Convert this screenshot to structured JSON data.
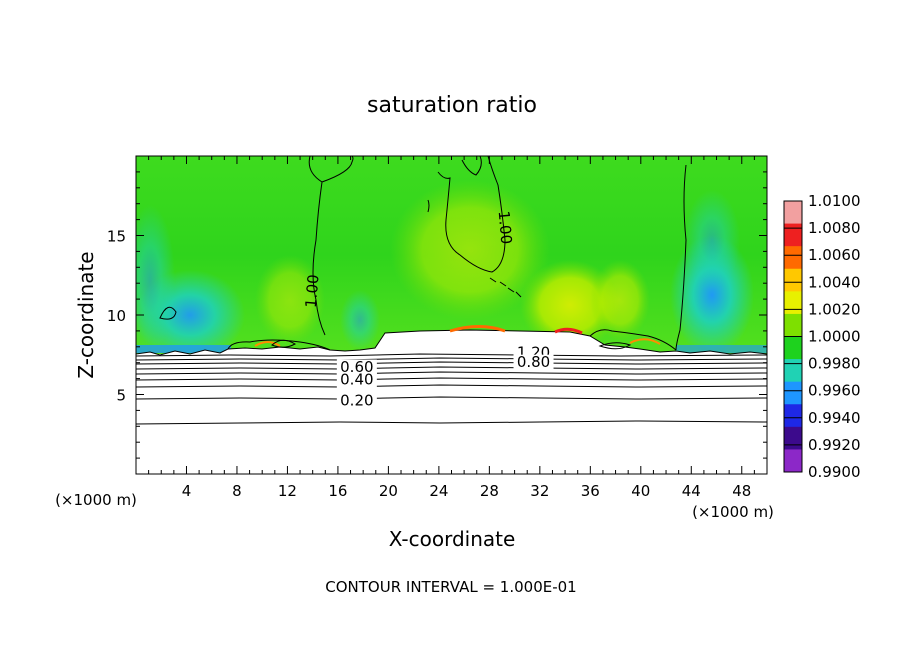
{
  "chart_data": {
    "type": "heatmap",
    "title": "saturation ratio",
    "xlabel": "X-coordinate",
    "ylabel": "Z-coordinate",
    "x_unit_left": "(×1000 m)",
    "x_unit_right": "(×1000 m)",
    "xlim": [
      0,
      50
    ],
    "ylim": [
      0,
      20
    ],
    "x_ticks": [
      4,
      8,
      12,
      16,
      20,
      24,
      28,
      32,
      36,
      40,
      44,
      48
    ],
    "y_ticks": [
      5,
      10,
      15
    ],
    "colorbar": {
      "levels": [
        "1.0100",
        "1.0080",
        "1.0060",
        "1.0040",
        "1.0020",
        "1.0000",
        "0.9980",
        "0.9960",
        "0.9940",
        "0.9920",
        "0.9900"
      ],
      "colors": [
        "#f2a0a0",
        "#ee2020",
        "#ff6a00",
        "#ffc800",
        "#e8f000",
        "#7ee000",
        "#1ed21e",
        "#20d2b4",
        "#1e96ff",
        "#1e28e6",
        "#3c0a8c",
        "#8c28c8"
      ]
    },
    "contour_labels": [
      {
        "text": "1.00",
        "x": 14.0,
        "y": 11.5,
        "angle": -85
      },
      {
        "text": "1.00",
        "x": 29.2,
        "y": 15.5,
        "angle": 85
      },
      {
        "text": "0.60",
        "x": 17.5,
        "y": 6.7,
        "angle": 0
      },
      {
        "text": "0.40",
        "x": 17.5,
        "y": 5.9,
        "angle": 0
      },
      {
        "text": "0.20",
        "x": 17.5,
        "y": 4.6,
        "angle": 0
      },
      {
        "text": "1.20",
        "x": 31.5,
        "y": 7.6,
        "angle": 0
      },
      {
        "text": "0.80",
        "x": 31.5,
        "y": 7.0,
        "angle": 0
      }
    ],
    "footer": "CONTOUR INTERVAL = 1.000E-01"
  }
}
